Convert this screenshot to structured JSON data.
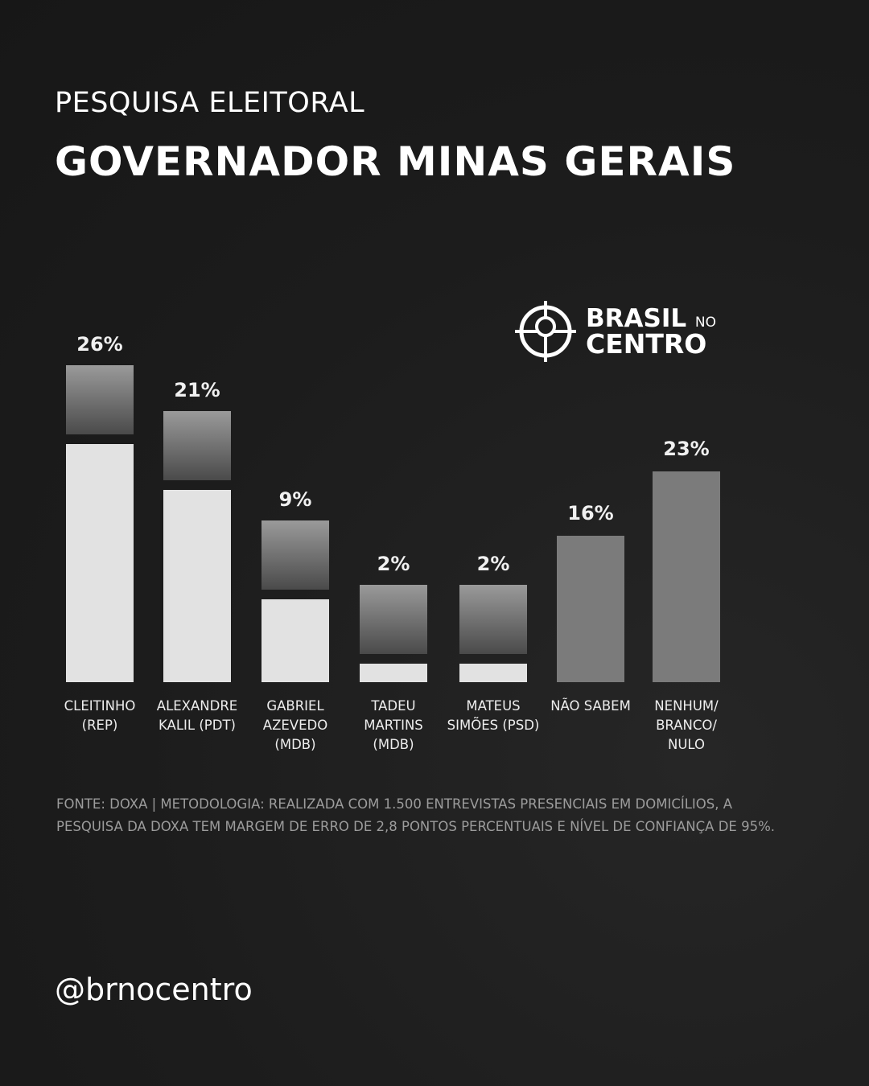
{
  "chart_data": {
    "type": "bar",
    "subtitle": "PESQUISA ELEITORAL",
    "title": "GOVERNADOR MINAS GERAIS",
    "categories": [
      "CLEITINHO (REP)",
      "ALEXANDRE KALIL (PDT)",
      "GABRIEL AZEVEDO (MDB)",
      "TADEU MARTINS (MDB)",
      "MATEUS SIMÕES (PSD)",
      "NÃO SABEM",
      "NENHUM/ BRANCO/ NULO"
    ],
    "values": [
      26,
      21,
      9,
      2,
      2,
      16,
      23
    ],
    "value_labels": [
      "26%",
      "21%",
      "9%",
      "2%",
      "2%",
      "16%",
      "23%"
    ],
    "colors": [
      "#e2e2e2",
      "#e2e2e2",
      "#e2e2e2",
      "#e2e2e2",
      "#e2e2e2",
      "#7b7b7b",
      "#7b7b7b"
    ],
    "source": "FONTE: DOXA | METODOLOGIA: REALIZADA COM 1.500 ENTREVISTAS PRESENCIAIS EM DOMICÍLIOS, A PESQUISA DA DOXA TEM MARGEM DE ERRO DE 2,8 PONTOS PERCENTUAIS E NÍVEL DE CONFIANÇA DE 95%."
  },
  "logo": {
    "line1": "BRASIL",
    "small": "NO",
    "line2": "CENTRO"
  },
  "handle": "@brnocentro"
}
